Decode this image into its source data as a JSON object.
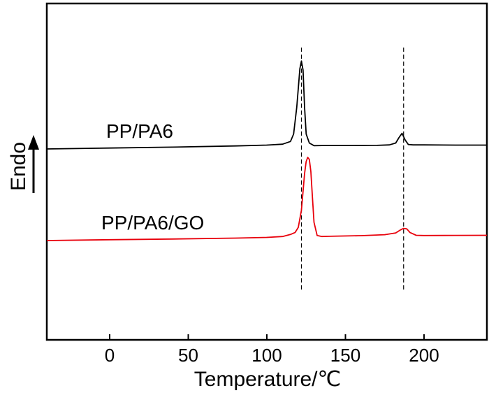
{
  "chart_data": {
    "type": "line",
    "xlabel": "Temperature/℃",
    "ylabel": "Endo",
    "xlim": [
      -40,
      240
    ],
    "xticks": [
      0,
      50,
      100,
      150,
      200
    ],
    "y_ticks_visible": false,
    "grid": false,
    "series": [
      {
        "name": "PP/PA6",
        "color": "#000000",
        "x": [
          -40,
          0,
          40,
          80,
          100,
          110,
          115,
          117,
          119,
          121,
          122,
          123,
          124,
          125,
          127,
          130,
          135,
          150,
          170,
          178,
          182,
          184,
          186,
          188,
          190,
          193,
          200,
          220,
          240
        ],
        "values": [
          0.0,
          0.6,
          1.2,
          2.0,
          2.6,
          3.2,
          5.0,
          10,
          28,
          54,
          59,
          53,
          28,
          10,
          4,
          2.2,
          2.3,
          2.3,
          2.4,
          2.7,
          4.0,
          7.5,
          10.5,
          6.0,
          3.0,
          2.7,
          2.7,
          2.6,
          2.6
        ]
      },
      {
        "name": "PP/PA6/GO",
        "color": "#e8000b",
        "x": [
          -40,
          0,
          40,
          80,
          100,
          110,
          115,
          118,
          120,
          122,
          124,
          125,
          126,
          127,
          128,
          129,
          130,
          132,
          135,
          140,
          160,
          175,
          182,
          185,
          187,
          189,
          191,
          195,
          200,
          220,
          240
        ],
        "values": [
          0.0,
          0.8,
          1.5,
          2.4,
          3.1,
          4.0,
          6.0,
          8.0,
          13,
          30,
          66,
          78,
          82,
          80,
          68,
          42,
          18,
          5,
          4.0,
          4.2,
          4.8,
          5.8,
          7.5,
          10.5,
          12.0,
          11.5,
          8.0,
          5.2,
          5.0,
          5.1,
          5.2
        ]
      }
    ],
    "reference_lines_x": [
      122,
      187
    ]
  }
}
